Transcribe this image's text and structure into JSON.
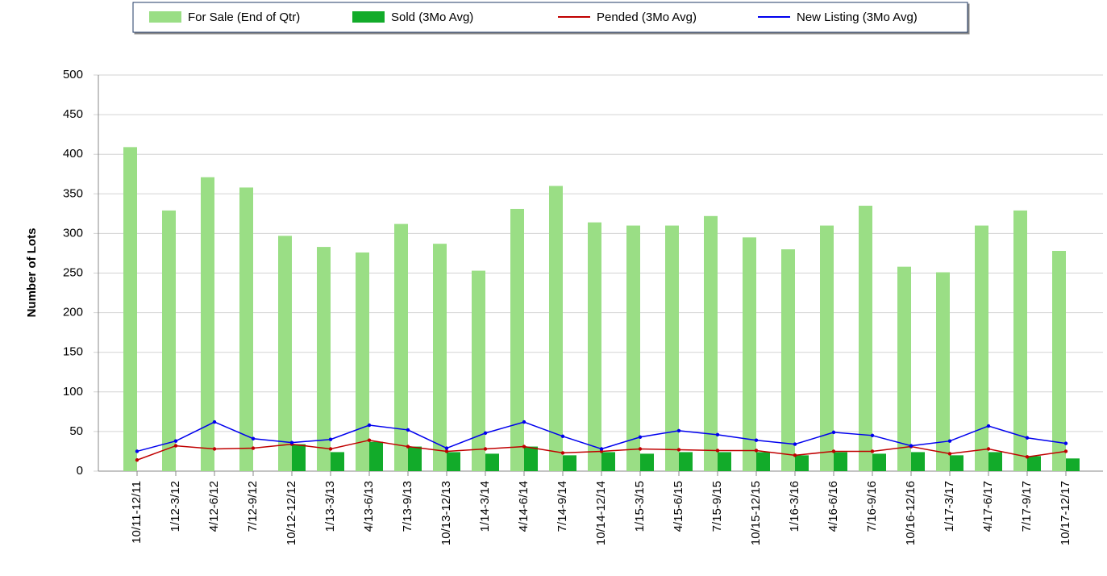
{
  "chart_data": {
    "type": "bar-line",
    "y_label": "Number of Lots",
    "categories": [
      "10/11-12/11",
      "1/12-3/12",
      "4/12-6/12",
      "7/12-9/12",
      "10/12-12/12",
      "1/13-3/13",
      "4/13-6/13",
      "7/13-9/13",
      "10/13-12/13",
      "1/14-3/14",
      "4/14-6/14",
      "7/14-9/14",
      "10/14-12/14",
      "1/15-3/15",
      "4/15-6/15",
      "7/15-9/15",
      "10/15-12/15",
      "1/16-3/16",
      "4/16-6/16",
      "7/16-9/16",
      "10/16-12/16",
      "1/17-3/17",
      "4/17-6/17",
      "7/17-9/17",
      "10/17-12/17"
    ],
    "series": [
      {
        "name": "For Sale (End of Qtr)",
        "kind": "bar",
        "color": "#9ade85",
        "values": [
          409,
          329,
          371,
          358,
          297,
          283,
          276,
          312,
          287,
          253,
          331,
          360,
          314,
          310,
          310,
          322,
          295,
          280,
          310,
          335,
          258,
          251,
          310,
          329,
          278
        ]
      },
      {
        "name": "Sold (3Mo Avg)",
        "kind": "bar",
        "color": "#12ab2a",
        "values": [
          0,
          0,
          0,
          0,
          34,
          24,
          37,
          31,
          24,
          22,
          31,
          20,
          24,
          22,
          24,
          24,
          24,
          20,
          24,
          22,
          24,
          20,
          24,
          19,
          16
        ]
      },
      {
        "name": "Pended (3Mo Avg)",
        "kind": "line",
        "color": "#c00000",
        "values": [
          14,
          32,
          28,
          29,
          34,
          28,
          39,
          31,
          25,
          28,
          31,
          23,
          25,
          28,
          27,
          26,
          26,
          20,
          25,
          25,
          31,
          22,
          28,
          18,
          25
        ]
      },
      {
        "name": "New Listing (3Mo Avg)",
        "kind": "line",
        "color": "#0000ee",
        "values": [
          25,
          38,
          62,
          41,
          36,
          40,
          58,
          52,
          29,
          48,
          62,
          44,
          28,
          43,
          51,
          46,
          39,
          34,
          49,
          45,
          32,
          38,
          57,
          42,
          35
        ]
      }
    ],
    "ylim": [
      0,
      500
    ],
    "yticks": [
      0,
      50,
      100,
      150,
      200,
      250,
      300,
      350,
      400,
      450,
      500
    ],
    "grid": true
  }
}
